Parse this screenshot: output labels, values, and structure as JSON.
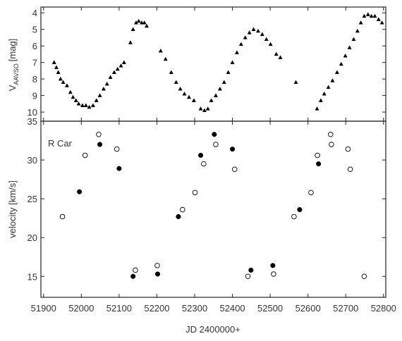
{
  "chart_data": [
    {
      "type": "scatter",
      "ylabel": {
        "main": "V",
        "sub": "AAVSO",
        "rest": "[mag]"
      },
      "xlim": [
        51893,
        52806
      ],
      "ylim": [
        3.65,
        10.55
      ],
      "y_inverted": true,
      "yticks": [
        4,
        5,
        6,
        7,
        8,
        9,
        10
      ],
      "xticks": [
        51900,
        52000,
        52100,
        52200,
        52300,
        52400,
        52500,
        52600,
        52700,
        52800
      ],
      "series": [
        {
          "marker": "triangle",
          "color": "#000000",
          "x": [
            51928,
            51934,
            51939,
            51945,
            51952,
            51962,
            51971,
            51978,
            51986,
            51993,
            52003,
            52012,
            52021,
            52031,
            52040,
            52049,
            52059,
            52068,
            52077,
            52087,
            52096,
            52105,
            52113,
            52130,
            52137,
            52145,
            52152,
            52160,
            52167,
            52173,
            52210,
            52223,
            52238,
            52251,
            52262,
            52273,
            52285,
            52298,
            52316,
            52326,
            52335,
            52344,
            52356,
            52367,
            52378,
            52389,
            52400,
            52412,
            52423,
            52434,
            52445,
            52456,
            52468,
            52479,
            52490,
            52501,
            52516,
            52527,
            52568,
            52624,
            52634,
            52643,
            52654,
            52665,
            52677,
            52688,
            52699,
            52710,
            52721,
            52731,
            52740,
            52749,
            52759,
            52768,
            52777,
            52787,
            52796
          ],
          "values": [
            7.0,
            7.3,
            7.6,
            8.0,
            8.2,
            8.4,
            8.8,
            9.1,
            9.3,
            9.5,
            9.6,
            9.6,
            9.7,
            9.6,
            9.3,
            9.0,
            8.6,
            8.3,
            7.9,
            7.6,
            7.4,
            7.2,
            7.0,
            5.8,
            5.0,
            4.6,
            4.5,
            4.6,
            4.6,
            4.8,
            6.3,
            6.8,
            7.6,
            8.2,
            8.6,
            8.9,
            9.1,
            9.3,
            9.8,
            9.9,
            9.8,
            9.3,
            9.0,
            8.6,
            8.2,
            7.6,
            7.0,
            6.4,
            5.9,
            5.5,
            5.2,
            5.0,
            5.1,
            5.3,
            5.6,
            5.9,
            6.5,
            6.7,
            8.2,
            9.8,
            9.3,
            8.9,
            8.5,
            8.1,
            7.6,
            7.1,
            6.6,
            6.1,
            5.6,
            5.1,
            4.6,
            4.2,
            4.1,
            4.2,
            4.2,
            4.4,
            4.6
          ]
        }
      ]
    },
    {
      "type": "scatter",
      "ylabel": "velocity [km/s]",
      "xlabel": "JD 2400000+",
      "annotation": "R Car",
      "xlim": [
        51893,
        52806
      ],
      "ylim": [
        12.3,
        35
      ],
      "yticks": [
        15,
        20,
        25,
        30,
        35
      ],
      "xticks": [
        51900,
        52000,
        52100,
        52200,
        52300,
        52400,
        52500,
        52600,
        52700,
        52800
      ],
      "series": [
        {
          "marker": "filled",
          "color": "#000000",
          "x": [
            51995,
            52049,
            52100,
            52137,
            52202,
            52257,
            52316,
            52352,
            52400,
            52449,
            52507,
            52578,
            52628
          ],
          "values": [
            25.9,
            32.0,
            28.9,
            15.0,
            15.3,
            22.7,
            30.6,
            33.3,
            31.4,
            15.8,
            16.4,
            23.6,
            29.5
          ]
        },
        {
          "marker": "open",
          "color": "#000000",
          "x": [
            51950,
            52010,
            52046,
            52094,
            52143,
            52201,
            52268,
            52301,
            52324,
            52356,
            52406,
            52441,
            52509,
            52563,
            52608,
            52625,
            52660,
            52662,
            52706,
            52712,
            52749
          ],
          "values": [
            22.7,
            30.6,
            33.3,
            31.4,
            15.8,
            16.4,
            23.6,
            25.8,
            29.5,
            32.0,
            28.8,
            15.0,
            15.3,
            22.7,
            25.8,
            30.6,
            33.3,
            32.0,
            31.4,
            28.8,
            15.0
          ]
        }
      ]
    }
  ]
}
